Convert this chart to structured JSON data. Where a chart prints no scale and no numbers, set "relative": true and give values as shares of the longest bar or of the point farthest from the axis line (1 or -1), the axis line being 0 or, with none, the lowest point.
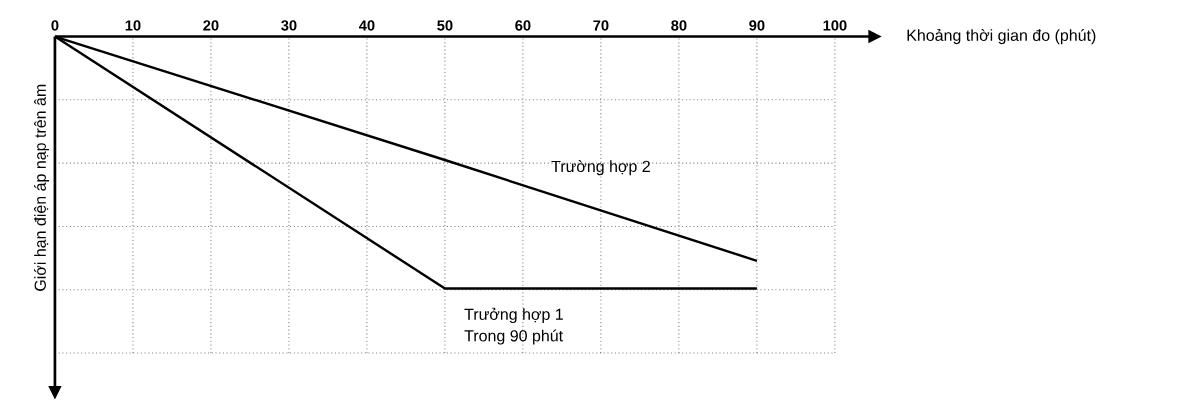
{
  "chart_data": {
    "type": "line",
    "relative": true,
    "xlabel": "Khoảng thời gian đo (phút)",
    "ylabel": "Giới hạn điện áp nạp trên âm",
    "xlim": [
      0,
      100
    ],
    "xticks": [
      0,
      10,
      20,
      30,
      40,
      50,
      60,
      70,
      80,
      90,
      100
    ],
    "grid": true,
    "marker": "none",
    "line_style": "solid",
    "series": [
      {
        "name": "Trưởng hợp 1",
        "color": "#000000",
        "x": [
          0,
          50,
          90
        ],
        "values": [
          0,
          -1,
          -1
        ]
      },
      {
        "name": "Trường hợp 2",
        "color": "#000000",
        "x": [
          0,
          50,
          90
        ],
        "values": [
          0,
          -0.49,
          -0.89
        ]
      }
    ],
    "annotations": [
      "Trong 90 phút"
    ]
  }
}
